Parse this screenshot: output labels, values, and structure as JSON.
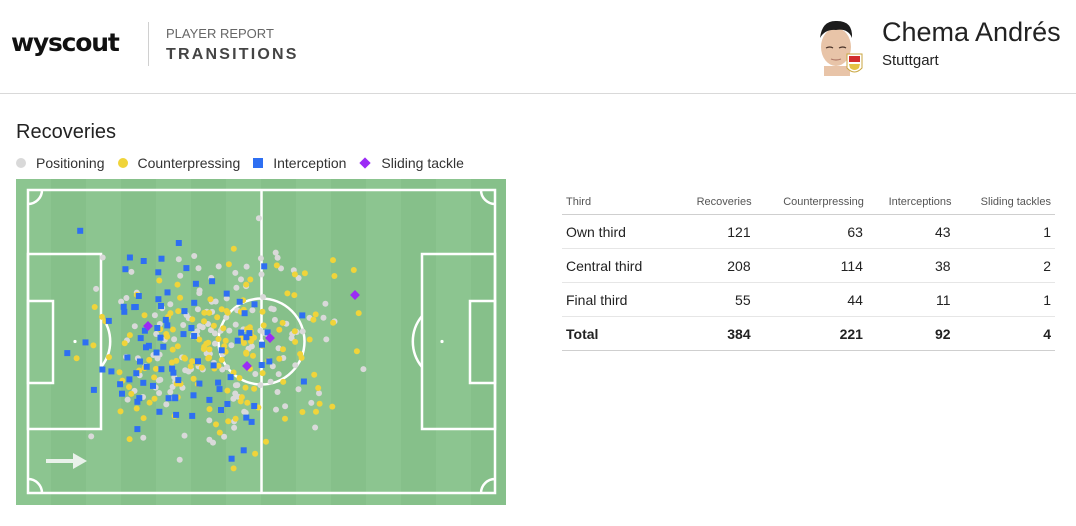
{
  "header": {
    "logo": "wyscout",
    "report_label": "PLAYER REPORT",
    "report_title": "TRANSITIONS",
    "player_name": "Chema Andrés",
    "club": "Stuttgart"
  },
  "section": {
    "title": "Recoveries",
    "legend": [
      {
        "label": "Positioning",
        "color": "#d9d9d9",
        "shape": "circle"
      },
      {
        "label": "Counterpressing",
        "color": "#f0d43a",
        "shape": "circle"
      },
      {
        "label": "Interception",
        "color": "#2e6ff2",
        "shape": "square"
      },
      {
        "label": "Sliding tackle",
        "color": "#9b2bf5",
        "shape": "diamond"
      }
    ]
  },
  "colors": {
    "pitch": "#86c08a",
    "pitch_stripe": "#8cc590",
    "lines": "#ffffff",
    "positioning": "#d9d9d9",
    "counterpressing": "#f0d43a",
    "interception": "#2e6ff2",
    "sliding_tackle": "#9b2bf5"
  },
  "table": {
    "columns": [
      "Third",
      "Recoveries",
      "Counterpressing",
      "Interceptions",
      "Sliding tackles"
    ],
    "rows": [
      [
        "Own third",
        "121",
        "63",
        "43",
        "1"
      ],
      [
        "Central third",
        "208",
        "114",
        "38",
        "2"
      ],
      [
        "Final third",
        "55",
        "44",
        "11",
        "1"
      ]
    ],
    "total": [
      "Total",
      "384",
      "221",
      "92",
      "4"
    ]
  },
  "pitch_icons": {
    "direction": "arrow-right-icon"
  }
}
